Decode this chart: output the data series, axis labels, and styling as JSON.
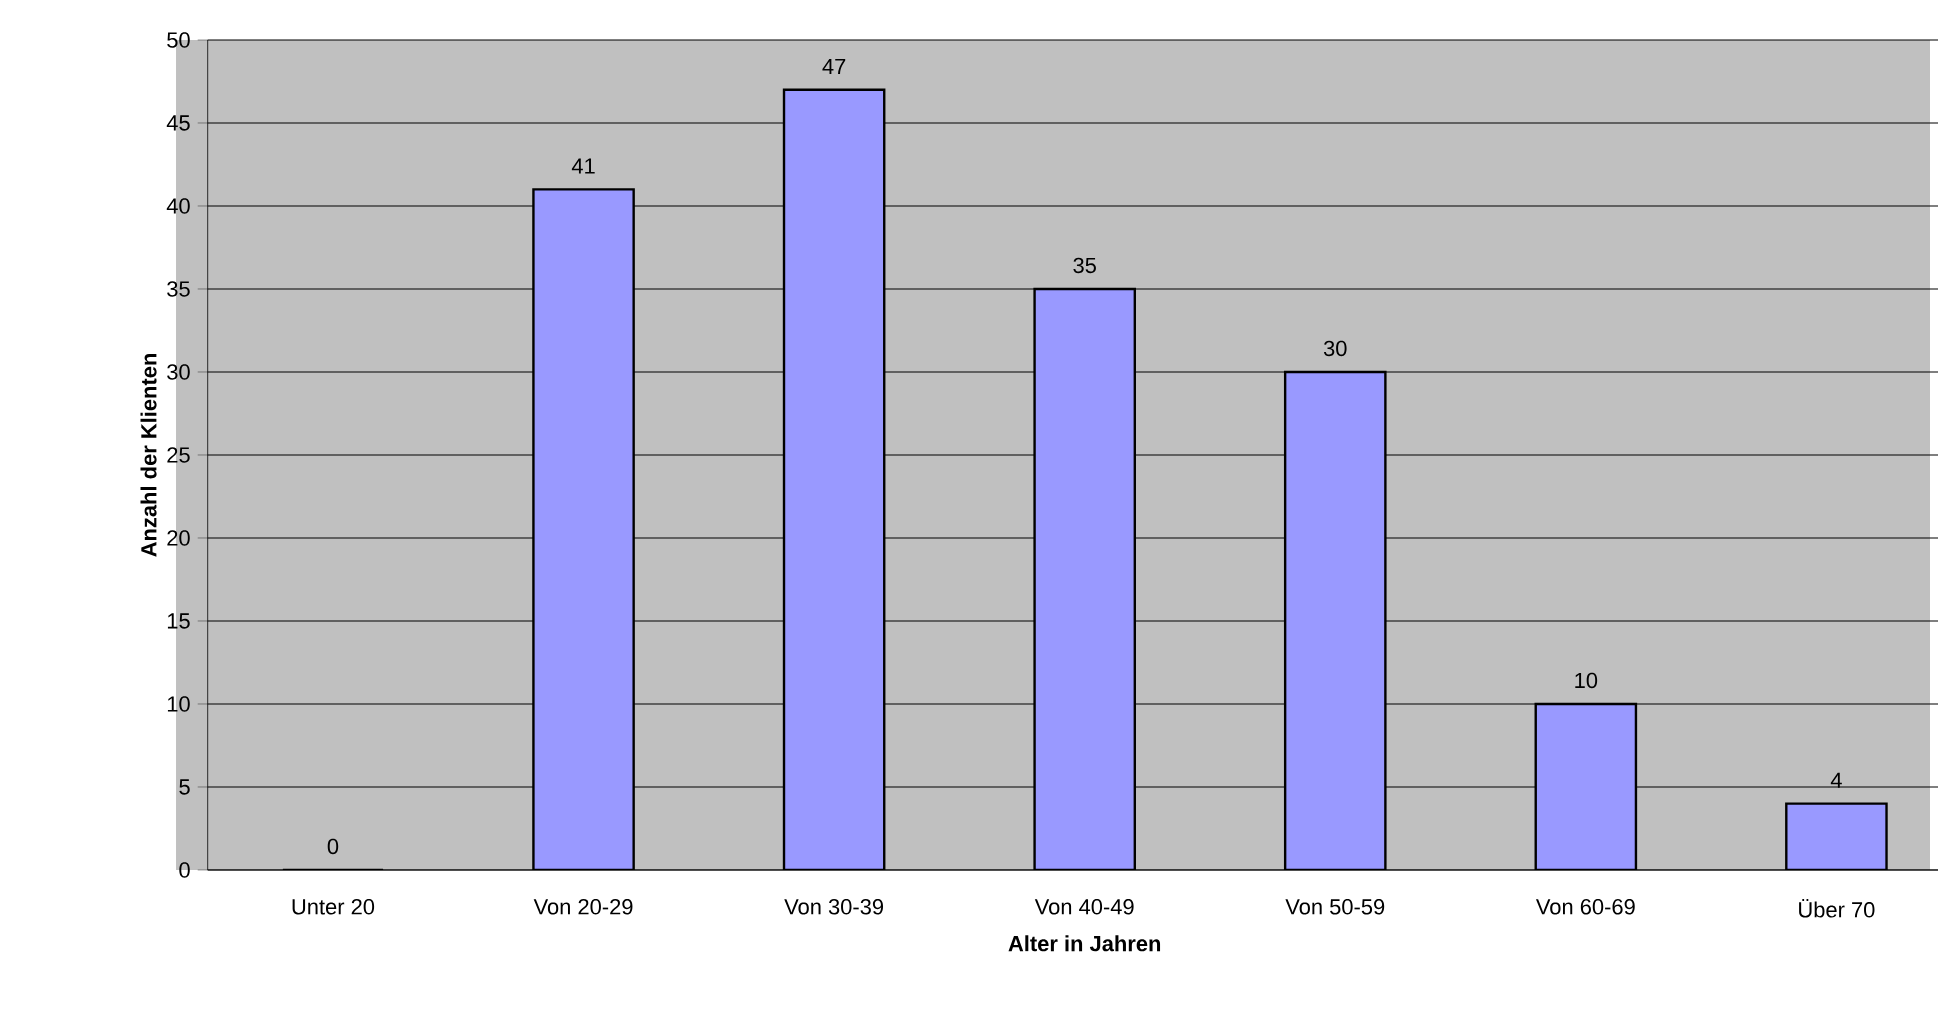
{
  "chart_data": {
    "type": "bar",
    "xlabel": "Alter in Jahren",
    "ylabel": "Anzahl der Klienten",
    "categories": [
      "Unter 20",
      "Von 20-29",
      "Von 30-39",
      "Von 40-49",
      "Von 50-59",
      "Von 60-69",
      "Über 70"
    ],
    "values": [
      0,
      41,
      47,
      35,
      30,
      10,
      4
    ],
    "color": "#9999ff",
    "ylim": [
      0,
      50
    ],
    "yticks": [
      0,
      5,
      10,
      15,
      20,
      25,
      30,
      35,
      40,
      45,
      50
    ],
    "grid": "y",
    "data_labels": true
  }
}
